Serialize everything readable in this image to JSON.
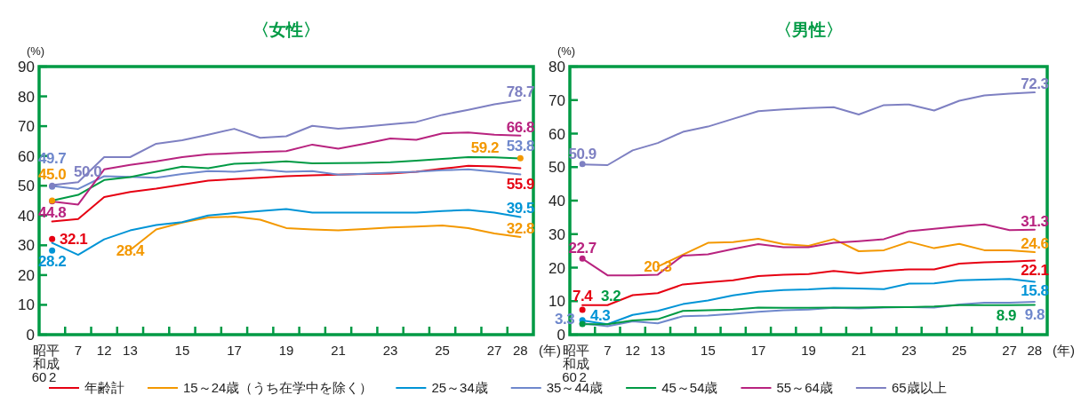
{
  "chart_data": [
    {
      "type": "line",
      "title": "〈女性〉",
      "ylabel": "(%)",
      "xlabel": "(年)",
      "legend": "bottom",
      "ylim": [
        0,
        90
      ],
      "yticks": [
        0,
        10,
        20,
        30,
        40,
        50,
        60,
        70,
        80,
        90
      ],
      "categories": [
        "昭和60 平成2",
        "7",
        "12",
        "13",
        null,
        "15",
        null,
        "17",
        null,
        "19",
        null,
        "21",
        null,
        "23",
        null,
        "25",
        null,
        "27",
        "28"
      ],
      "series": [
        {
          "name": "年齢計",
          "color": "#e60012",
          "values": [
            38.0,
            38.8,
            46.2,
            47.9,
            49.0,
            50.4,
            51.7,
            52.2,
            52.7,
            53.2,
            53.5,
            53.7,
            53.9,
            54.1,
            54.7,
            55.7,
            56.7,
            56.5,
            55.9
          ],
          "value_labels": [
            null,
            null,
            null,
            null,
            null,
            null,
            null,
            null,
            null,
            null,
            null,
            null,
            null,
            null,
            null,
            null,
            null,
            null,
            "55.9"
          ]
        },
        {
          "name": "15～24歳（うち在学中を除く）",
          "color": "#f39800",
          "values": [
            null,
            null,
            null,
            28.4,
            35.3,
            37.6,
            39.3,
            39.6,
            38.6,
            35.8,
            35.3,
            35.0,
            35.5,
            36.0,
            36.3,
            36.7,
            35.8,
            34.0,
            32.8
          ],
          "value_labels": [
            null,
            null,
            null,
            "28.4",
            null,
            null,
            null,
            null,
            null,
            null,
            null,
            null,
            null,
            null,
            null,
            null,
            null,
            null,
            "32.8"
          ]
        },
        {
          "name": "25～34歳",
          "color": "#0094d6",
          "values": [
            30.8,
            26.8,
            32.0,
            35.0,
            36.8,
            37.8,
            40.0,
            40.8,
            41.5,
            42.2,
            41.0,
            41.0,
            41.0,
            41.0,
            41.0,
            41.5,
            41.9,
            41.0,
            39.5
          ],
          "value_labels": [
            null,
            null,
            null,
            null,
            null,
            null,
            null,
            null,
            null,
            null,
            null,
            null,
            null,
            null,
            null,
            null,
            null,
            null,
            "39.5"
          ]
        },
        {
          "name": "35～44歳",
          "color": "#6f88cc",
          "values": [
            49.9,
            48.9,
            53.2,
            53.0,
            52.7,
            53.9,
            54.9,
            54.7,
            55.4,
            54.7,
            54.9,
            53.7,
            54.0,
            54.4,
            54.7,
            55.2,
            55.5,
            54.7,
            53.8
          ],
          "value_labels": [
            null,
            null,
            null,
            null,
            null,
            null,
            null,
            null,
            null,
            null,
            null,
            null,
            null,
            null,
            null,
            null,
            null,
            null,
            "53.8"
          ]
        },
        {
          "name": "45～54歳",
          "color": "#009a44",
          "values": [
            45.0,
            46.9,
            51.9,
            52.9,
            54.7,
            56.4,
            55.9,
            57.4,
            57.7,
            58.2,
            57.5,
            57.6,
            57.7,
            57.9,
            58.4,
            59.0,
            59.6,
            59.5,
            59.2
          ]
        },
        {
          "name": "55～64歳",
          "color": "#b8237f",
          "values": [
            44.7,
            43.7,
            55.5,
            57.0,
            58.2,
            59.6,
            60.6,
            60.9,
            61.3,
            61.6,
            63.8,
            62.4,
            64.1,
            65.9,
            65.4,
            67.6,
            67.9,
            67.1,
            66.8
          ],
          "value_labels": [
            null,
            null,
            null,
            null,
            null,
            null,
            null,
            null,
            null,
            null,
            null,
            null,
            null,
            null,
            null,
            null,
            null,
            null,
            "66.8"
          ]
        },
        {
          "name": "65歳以上",
          "color": "#7e80c2",
          "values": [
            50.2,
            51.2,
            59.6,
            59.6,
            64.1,
            65.3,
            67.1,
            69.1,
            66.1,
            66.6,
            70.1,
            69.1,
            69.8,
            70.6,
            71.4,
            73.8,
            75.5,
            77.3,
            78.7
          ],
          "value_labels": [
            null,
            null,
            null,
            null,
            null,
            null,
            null,
            null,
            null,
            null,
            null,
            null,
            null,
            null,
            null,
            null,
            null,
            null,
            "78.7"
          ]
        },
        {
          "type": "scatter",
          "color": "#e60012",
          "x": [
            "昭和60 平成2"
          ],
          "values": [
            32.1
          ],
          "value_labels": [
            "32.1"
          ]
        },
        {
          "type": "scatter",
          "color": "#0094d6",
          "x": [
            "昭和60 平成2"
          ],
          "values": [
            28.2
          ],
          "value_labels": [
            "28.2"
          ]
        },
        {
          "type": "scatter",
          "color": "#b8237f",
          "x": [
            "昭和60 平成2"
          ],
          "values": [
            44.8
          ],
          "value_labels": [
            "44.8"
          ]
        },
        {
          "type": "scatter",
          "color": "#f39800",
          "x": [
            "昭和60 平成2"
          ],
          "values": [
            45.0
          ],
          "value_labels": [
            "45.0"
          ]
        },
        {
          "type": "scatter",
          "color": "#6f88cc",
          "x": [
            "昭和60 平成2"
          ],
          "values": [
            49.7
          ],
          "value_labels": [
            "49.7"
          ]
        },
        {
          "type": "scatter",
          "color": "#7e80c2",
          "x": [
            "昭和60 平成2"
          ],
          "values": [
            50.0
          ],
          "value_labels": [
            "50.0"
          ]
        },
        {
          "type": "scatter",
          "color": "#f39800",
          "x": [
            "28"
          ],
          "values": [
            59.2
          ],
          "value_labels": [
            "59.2"
          ]
        }
      ]
    },
    {
      "type": "line",
      "title": "〈男性〉",
      "ylabel": "(%)",
      "xlabel": "(年)",
      "ylim": [
        0,
        80
      ],
      "yticks": [
        0,
        10,
        20,
        30,
        40,
        50,
        60,
        70,
        80
      ],
      "categories": [
        "昭和60 平成2",
        "7",
        "12",
        "13",
        null,
        "15",
        null,
        "17",
        null,
        "19",
        null,
        "21",
        null,
        "23",
        null,
        "25",
        null,
        "27",
        "28"
      ],
      "series": [
        {
          "color": "#e60012",
          "values": [
            8.8,
            8.8,
            11.8,
            12.4,
            15.0,
            15.6,
            16.2,
            17.5,
            17.9,
            18.1,
            19.0,
            18.3,
            19.0,
            19.5,
            19.5,
            21.2,
            21.6,
            21.8,
            22.1
          ],
          "value_labels": [
            null,
            null,
            null,
            null,
            null,
            null,
            null,
            null,
            null,
            null,
            null,
            null,
            null,
            null,
            null,
            null,
            null,
            null,
            "22.1"
          ]
        },
        {
          "color": "#f39800",
          "values": [
            null,
            null,
            null,
            20.3,
            23.9,
            27.4,
            27.6,
            28.6,
            27.0,
            26.5,
            28.5,
            24.9,
            25.2,
            27.7,
            25.8,
            27.1,
            25.2,
            25.2,
            24.6
          ],
          "value_labels": [
            null,
            null,
            null,
            "20.3",
            null,
            null,
            null,
            null,
            null,
            null,
            null,
            null,
            null,
            null,
            null,
            null,
            null,
            null,
            "24.6"
          ]
        },
        {
          "color": "#0094d6",
          "values": [
            4.2,
            3.1,
            5.9,
            7.1,
            9.1,
            10.2,
            11.7,
            12.8,
            13.3,
            13.5,
            13.9,
            13.8,
            13.6,
            15.2,
            15.3,
            16.2,
            16.4,
            16.6,
            15.8
          ],
          "value_labels": [
            null,
            null,
            null,
            null,
            null,
            null,
            null,
            null,
            null,
            null,
            null,
            null,
            null,
            null,
            null,
            null,
            null,
            null,
            "15.8"
          ]
        },
        {
          "color": "#6f88cc",
          "values": [
            3.4,
            2.5,
            4.0,
            3.4,
            5.5,
            5.7,
            6.2,
            6.8,
            7.3,
            7.5,
            8.0,
            7.8,
            8.1,
            8.2,
            8.1,
            9.0,
            9.5,
            9.5,
            9.8
          ],
          "value_labels": [
            null,
            null,
            null,
            null,
            null,
            null,
            null,
            null,
            null,
            null,
            null,
            null,
            null,
            null,
            null,
            null,
            null,
            null,
            "9.8"
          ]
        },
        {
          "color": "#009a44",
          "values": [
            3.1,
            3.1,
            4.2,
            4.6,
            7.1,
            7.3,
            7.5,
            8.1,
            8.0,
            8.0,
            8.1,
            8.1,
            8.2,
            8.2,
            8.4,
            8.8,
            8.8,
            8.8,
            8.9
          ],
          "value_labels": [
            null,
            null,
            null,
            null,
            null,
            null,
            null,
            null,
            null,
            null,
            null,
            null,
            null,
            null,
            null,
            null,
            null,
            null,
            "8.9"
          ]
        },
        {
          "color": "#b8237f",
          "values": [
            22.7,
            17.7,
            17.7,
            17.9,
            23.6,
            24.0,
            25.6,
            27.0,
            26.1,
            26.1,
            27.4,
            27.9,
            28.5,
            30.9,
            31.6,
            32.3,
            32.9,
            31.2,
            31.3
          ],
          "value_labels": [
            null,
            null,
            null,
            null,
            null,
            null,
            null,
            null,
            null,
            null,
            null,
            null,
            null,
            null,
            null,
            null,
            null,
            null,
            "31.3"
          ]
        },
        {
          "color": "#7e80c2",
          "values": [
            50.8,
            50.6,
            55.0,
            57.2,
            60.5,
            62.1,
            64.4,
            66.7,
            67.2,
            67.6,
            67.9,
            65.7,
            68.5,
            68.7,
            66.9,
            69.8,
            71.4,
            71.9,
            72.3
          ],
          "value_labels": [
            null,
            null,
            null,
            null,
            null,
            null,
            null,
            null,
            null,
            null,
            null,
            null,
            null,
            null,
            null,
            null,
            null,
            null,
            "72.3"
          ]
        },
        {
          "type": "scatter",
          "color": "#e60012",
          "x": [
            "昭和60 平成2"
          ],
          "values": [
            7.4
          ],
          "value_labels": [
            "7.4"
          ]
        },
        {
          "type": "scatter",
          "color": "#b8237f",
          "x": [
            "昭和60 平成2"
          ],
          "values": [
            22.7
          ],
          "value_labels": [
            "22.7"
          ]
        },
        {
          "type": "scatter",
          "color": "#7e80c2",
          "x": [
            "昭和60 平成2"
          ],
          "values": [
            50.9
          ],
          "value_labels": [
            "50.9"
          ]
        },
        {
          "type": "scatter",
          "color": "#6f88cc",
          "x": [
            "昭和60 平成2"
          ],
          "values": [
            3.3
          ],
          "value_labels": [
            "3.3"
          ]
        },
        {
          "type": "scatter",
          "color": "#0094d6",
          "x": [
            "昭和60 平成2"
          ],
          "values": [
            4.3
          ],
          "value_labels": [
            "4.3"
          ]
        },
        {
          "type": "scatter",
          "color": "#009a44",
          "x": [
            "昭和60 平成2"
          ],
          "values": [
            3.2
          ],
          "value_labels": [
            "3.2"
          ]
        }
      ]
    }
  ]
}
